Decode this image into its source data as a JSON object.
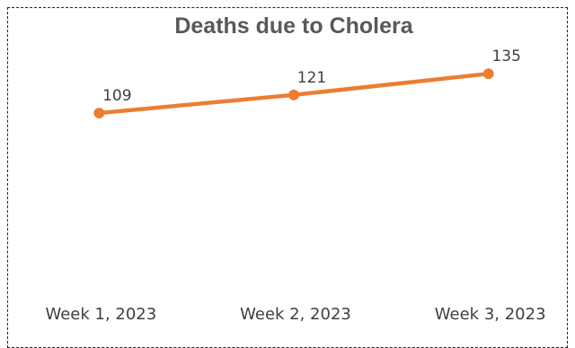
{
  "chart_data": {
    "type": "line",
    "title": "Deaths due to Cholera",
    "categories": [
      "Week 1, 2023",
      "Week 2, 2023",
      "Week 3, 2023"
    ],
    "series": [
      {
        "values": [
          109,
          121,
          135
        ],
        "color": "#ED7D31"
      }
    ],
    "data_labels": [
      "109",
      "121",
      "135"
    ],
    "xlabel": "",
    "ylabel": "",
    "ylim": [
      0,
      160
    ],
    "grid": false,
    "legend": "none"
  }
}
